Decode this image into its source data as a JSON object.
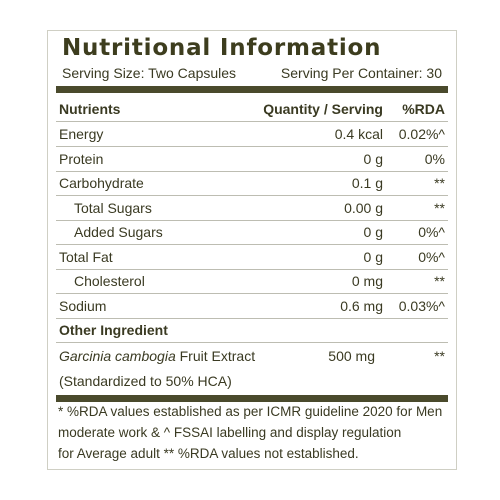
{
  "header": {
    "title": "Nutritional Information",
    "serving_size": "Serving Size: Two Capsules",
    "servings_per_container": "Serving Per Container: 30"
  },
  "table": {
    "columns": [
      "Nutrients",
      "Quantity / Serving",
      "%RDA"
    ],
    "rows": [
      [
        "Energy",
        "0.4 kcal",
        "0.02%^"
      ],
      [
        "Protein",
        "0 g",
        "0%"
      ],
      [
        "Carbohydrate",
        "0.1 g",
        "**"
      ],
      [
        "Total Sugars",
        "0.00 g",
        "**"
      ],
      [
        "Added Sugars",
        "0 g",
        "0%^"
      ],
      [
        "Total Fat",
        "0 g",
        "0%^"
      ],
      [
        "Cholesterol",
        "0 mg",
        "**"
      ],
      [
        "Sodium",
        "0.6 mg",
        "0.03%^"
      ]
    ]
  },
  "other_ingredient": {
    "heading": "Other Ingredient",
    "name_italic": "Garcinia cambogia",
    "name_rest": "Fruit Extract",
    "quantity": "500 mg",
    "rda": "**",
    "note": "(Standardized to 50% HCA)"
  },
  "footnote": {
    "lines": [
      "* %RDA values established as per ICMR guideline 2020 for Men",
      "moderate work & ^ FSSAI labelling and display regulation",
      "for Average adult ** %RDA values not established."
    ]
  }
}
